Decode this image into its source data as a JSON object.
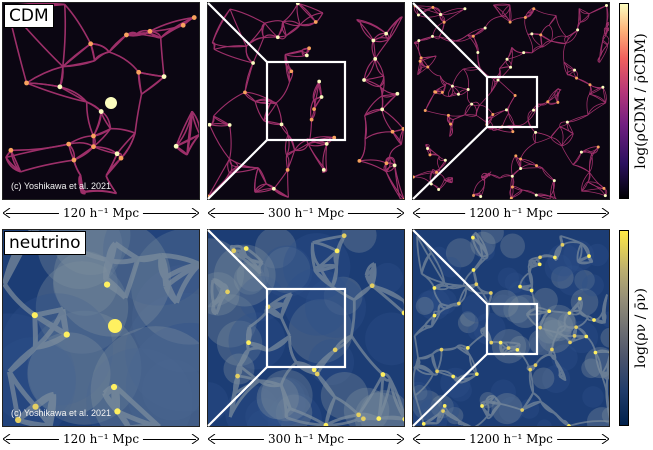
{
  "rows": [
    {
      "label": "CDM",
      "credit": "(c) Yoshikawa et al. 2021",
      "colorbar_label": "log(ρCDM / ρ̄CDM)",
      "colormap": "magma",
      "colors": {
        "bg": "#0b0612",
        "low": "#3b0f6f",
        "mid": "#b73779",
        "high": "#fcfdbf",
        "accent": "#f8a25e"
      }
    },
    {
      "label": "neutrino",
      "credit": "(c) Yoshikawa et al. 2021",
      "colorbar_label": "log(ρν / ρ̄ν)",
      "colormap": "cividis",
      "colors": {
        "bg": "#1c3d75",
        "low": "#2e4f8a",
        "mid": "#7d8e9e",
        "high": "#fff060",
        "accent": "#e4cf62"
      }
    }
  ],
  "scales": [
    "120 h⁻¹ Mpc",
    "300 h⁻¹ Mpc",
    "1200 h⁻¹ Mpc"
  ]
}
